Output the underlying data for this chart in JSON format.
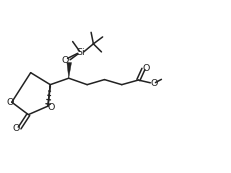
{
  "bg_color": "#ffffff",
  "line_color": "#222222",
  "lw": 1.1,
  "figsize": [
    2.32,
    1.73
  ],
  "dpi": 100,
  "xlim": [
    0.0,
    1.0
  ],
  "ylim": [
    0.15,
    0.85
  ]
}
